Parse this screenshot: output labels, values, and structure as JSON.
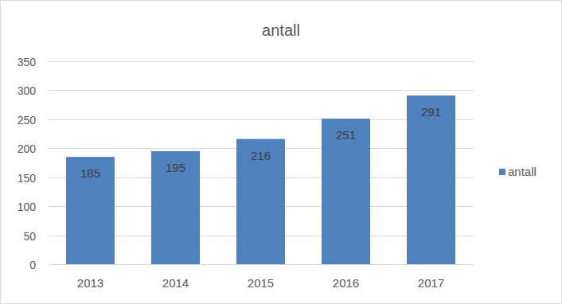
{
  "chart_data": {
    "type": "bar",
    "title": "antall",
    "categories": [
      "2013",
      "2014",
      "2015",
      "2016",
      "2017"
    ],
    "series": [
      {
        "name": "antall",
        "color": "#4f81bd",
        "values": [
          185,
          195,
          216,
          251,
          291
        ]
      }
    ],
    "ylim": [
      0,
      350
    ],
    "yticks": [
      0,
      50,
      100,
      150,
      200,
      250,
      300,
      350
    ],
    "grid": true,
    "data_labels": true,
    "legend": "right"
  }
}
